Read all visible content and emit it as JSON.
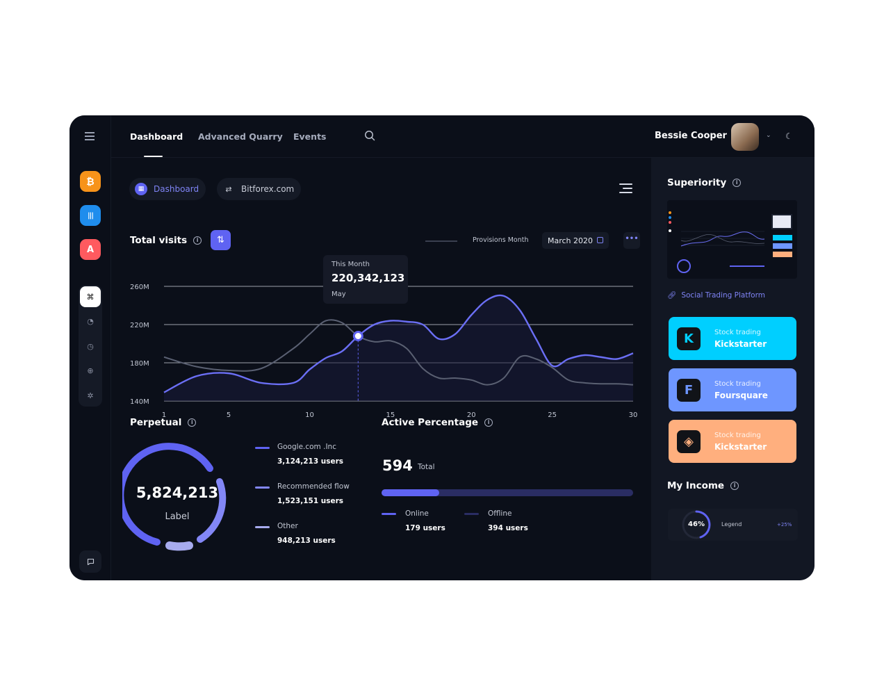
{
  "nav": {
    "tabs": [
      "Dashboard",
      "Advanced Quarry",
      "Events"
    ],
    "active_tab": "Dashboard"
  },
  "user": {
    "name": "Bessie Cooper"
  },
  "rail": {
    "apps": [
      {
        "name": "bitcoin-app-icon",
        "glyph": "₿",
        "color": "#f7931a"
      },
      {
        "name": "intercom-app-icon",
        "glyph": "|||",
        "color": "#1f8ded"
      },
      {
        "name": "airbnb-app-icon",
        "glyph": "A",
        "color": "#ff5a5f"
      }
    ]
  },
  "pills": {
    "dashboard": "Dashboard",
    "source": "Bitforex.com"
  },
  "total_visits": {
    "title": "Total visits",
    "legend_label": "Provisions Month",
    "date": "March 2020",
    "more": "•••",
    "tooltip": {
      "label": "This Month",
      "value": "220,342,123",
      "month": "May"
    }
  },
  "chart_data": {
    "type": "line",
    "x": [
      1,
      3,
      5,
      7,
      9,
      10,
      11,
      12,
      13,
      14,
      15,
      16,
      17,
      18,
      19,
      20,
      21,
      22,
      23,
      24,
      25,
      26,
      27,
      28,
      29,
      30
    ],
    "yticks": [
      "260M",
      "220M",
      "180M",
      "140M"
    ],
    "xticks": [
      "1",
      "5",
      "10",
      "15",
      "20",
      "25",
      "30"
    ],
    "ylim": [
      140,
      260
    ],
    "xlim": [
      1,
      30
    ],
    "series": [
      {
        "color": "#6b6ff5",
        "values": [
          149,
          166,
          169,
          159,
          159,
          173,
          185,
          192,
          208,
          220,
          224,
          223,
          220,
          205,
          210,
          230,
          246,
          250,
          235,
          205,
          177,
          184,
          188,
          186,
          184,
          190
        ]
      },
      {
        "color": "#5a6072",
        "values": [
          186,
          176,
          172,
          174,
          195,
          210,
          224,
          222,
          208,
          202,
          203,
          195,
          174,
          164,
          164,
          162,
          157,
          164,
          186,
          184,
          175,
          162,
          159,
          158,
          158,
          157
        ]
      }
    ]
  },
  "perpetual": {
    "title": "Perpetual",
    "total": "5,824,213",
    "label": "Label",
    "legend": [
      {
        "label": "Google.com .Inc",
        "value": "3,124,213 users",
        "color": "#5f63f2"
      },
      {
        "label": "Recommended flow",
        "value": "1,523,151 users",
        "color": "#8387f6"
      },
      {
        "label": "Other",
        "value": "948,213 users",
        "color": "#a7abee"
      }
    ]
  },
  "active_percentage": {
    "title": "Active Percentage",
    "total": "594",
    "total_label": "Total",
    "progress": 0.23,
    "online": {
      "label": "Online",
      "value": "179 users",
      "color": "#5f63f2"
    },
    "offline": {
      "label": "Offline",
      "value": "394 users",
      "color": "#2a2d63"
    }
  },
  "superiority": {
    "title": "Superiority",
    "link": "Social Trading Platform",
    "cards": [
      {
        "kicker": "Stock trading",
        "name": "Kickstarter",
        "color": "#00cfff",
        "logo": "K",
        "logo_color": "#00cfff"
      },
      {
        "kicker": "Stock trading",
        "name": "Foursquare",
        "color": "#6e96ff",
        "logo": "F",
        "logo_color": "#6e96ff"
      },
      {
        "kicker": "Stock trading",
        "name": "Kickstarter",
        "color": "#ffaf7e",
        "logo": "◈",
        "logo_color": "#ffaf7e"
      }
    ]
  },
  "income": {
    "title": "My Income",
    "percent": "46%",
    "legend": "Legend",
    "delta": "+25%"
  }
}
